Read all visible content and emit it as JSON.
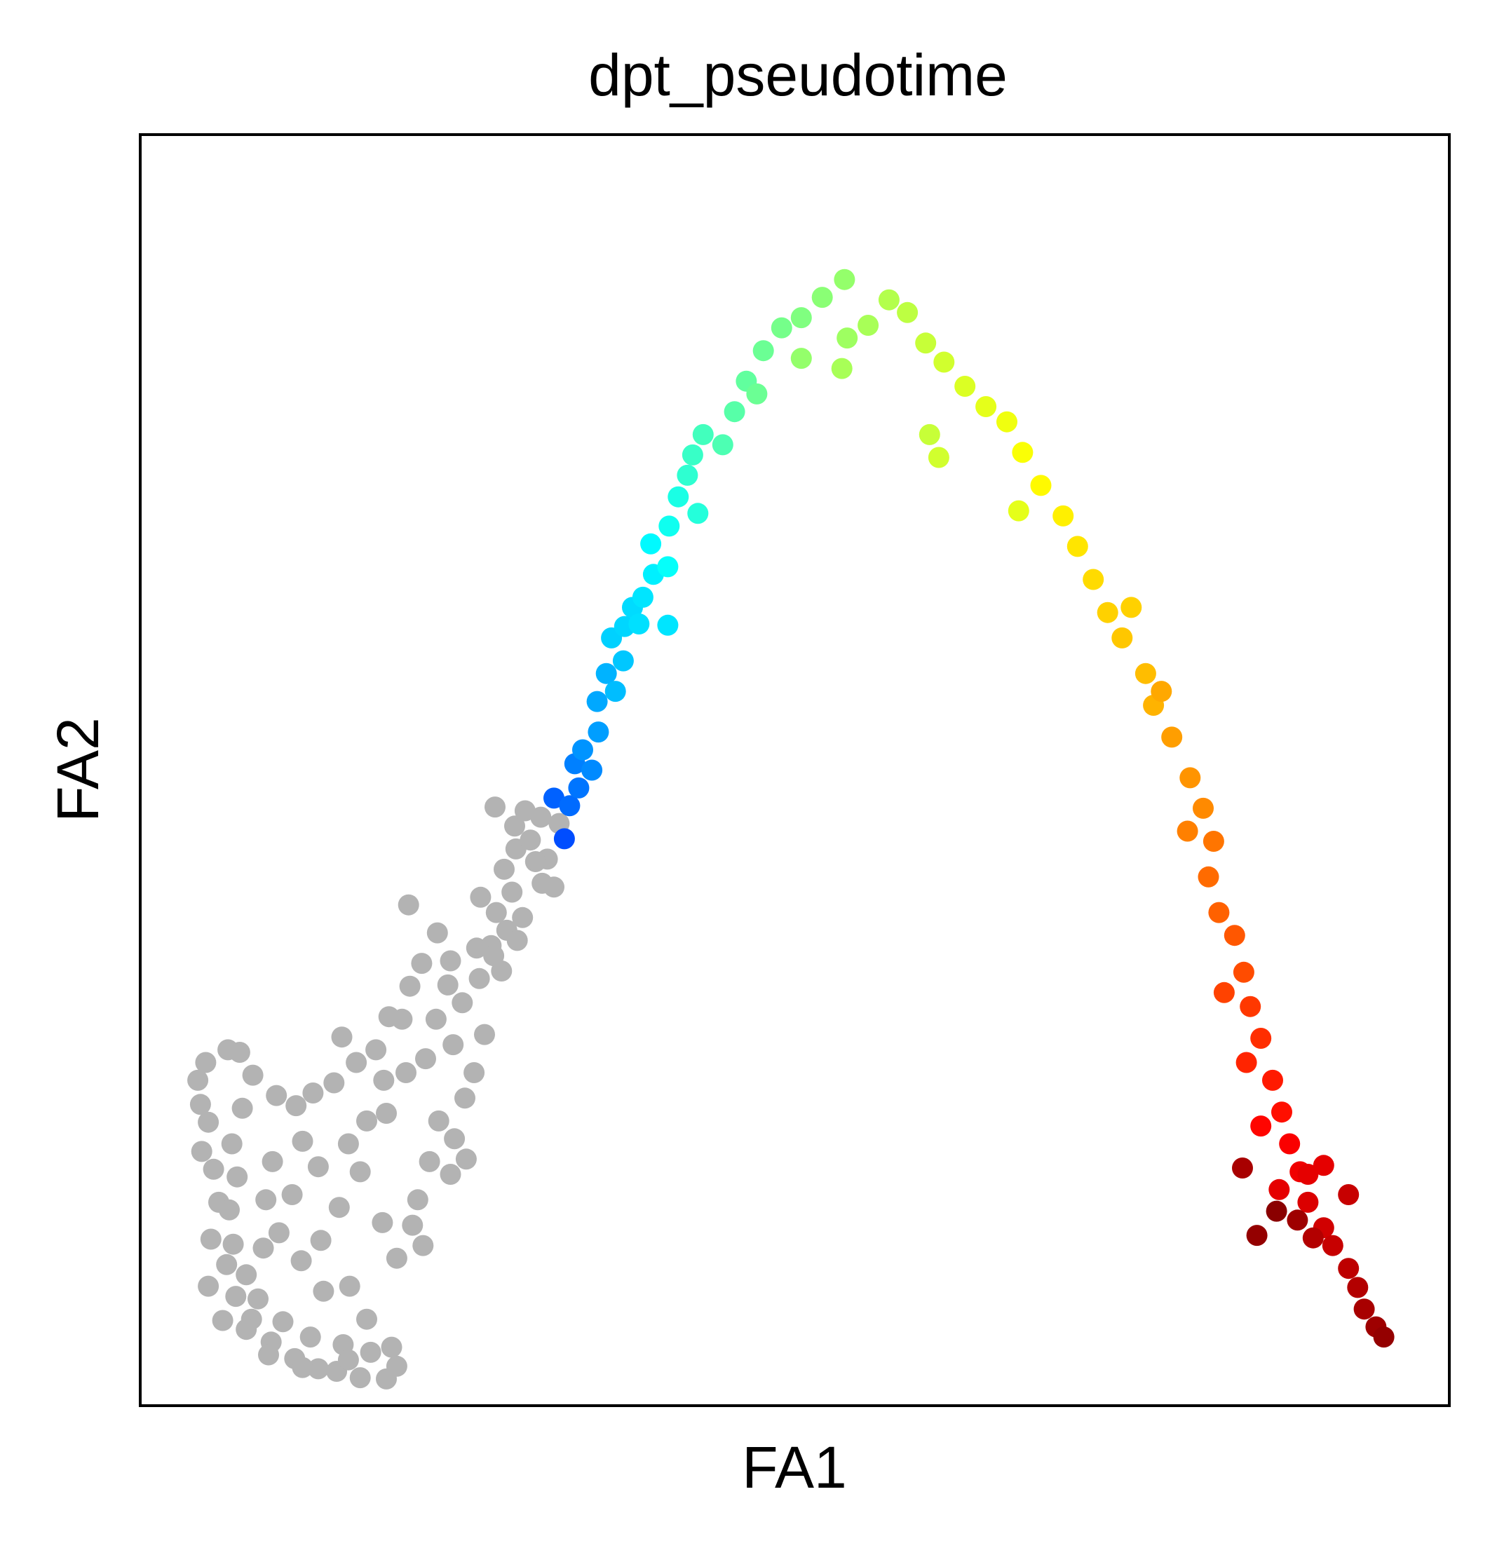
{
  "chart_data": {
    "type": "scatter",
    "title": "dpt_pseudotime",
    "xlabel": "FA1",
    "ylabel": "FA2",
    "xlim": [
      0,
      100
    ],
    "ylim": [
      0,
      100
    ],
    "xticks": false,
    "yticks": false,
    "grid": false,
    "legend": "none",
    "colormap": "jet",
    "missing_color": "#b3b3b3",
    "series": [
      {
        "values_note_free": true,
        "points": [
          [
            4.4,
            25.6,
            null
          ],
          [
            4.6,
            23.7,
            null
          ],
          [
            5.2,
            22.3,
            null
          ],
          [
            5.6,
            18.6,
            null
          ],
          [
            6.0,
            16.0,
            null
          ],
          [
            5.4,
            13.1,
            null
          ],
          [
            6.6,
            11.1,
            null
          ],
          [
            7.3,
            8.6,
            null
          ],
          [
            8.5,
            6.8,
            null
          ],
          [
            10.0,
            5.0,
            null
          ],
          [
            11.8,
            3.7,
            null
          ],
          [
            13.6,
            2.9,
            null
          ],
          [
            15.0,
            2.7,
            null
          ],
          [
            16.8,
            2.2,
            null
          ],
          [
            18.8,
            2.1,
            null
          ],
          [
            19.6,
            3.1,
            null
          ],
          [
            19.2,
            4.6,
            null
          ],
          [
            17.6,
            4.2,
            null
          ],
          [
            15.5,
            4.8,
            null
          ],
          [
            13.0,
            5.4,
            null
          ],
          [
            10.9,
            6.6,
            null
          ],
          [
            9.0,
            8.4,
            null
          ],
          [
            8.1,
            10.3,
            null
          ],
          [
            7.1,
            12.7,
            null
          ],
          [
            6.8,
            15.4,
            null
          ],
          [
            7.4,
            18.0,
            null
          ],
          [
            7.0,
            20.6,
            null
          ],
          [
            7.8,
            23.4,
            null
          ],
          [
            8.6,
            26.0,
            null
          ],
          [
            7.6,
            27.8,
            null
          ],
          [
            10.4,
            24.4,
            null
          ],
          [
            11.9,
            23.6,
            null
          ],
          [
            13.2,
            24.6,
            null
          ],
          [
            12.4,
            20.8,
            null
          ],
          [
            10.1,
            19.2,
            null
          ],
          [
            9.6,
            16.2,
            null
          ],
          [
            10.6,
            13.6,
            null
          ],
          [
            12.3,
            11.4,
            null
          ],
          [
            14.0,
            9.0,
            null
          ],
          [
            13.8,
            13.0,
            null
          ],
          [
            15.2,
            15.6,
            null
          ],
          [
            16.8,
            18.4,
            null
          ],
          [
            15.9,
            20.6,
            null
          ],
          [
            17.3,
            22.4,
            null
          ],
          [
            18.8,
            23.0,
            null
          ],
          [
            18.6,
            25.6,
            null
          ],
          [
            20.3,
            26.2,
            null
          ],
          [
            21.8,
            27.3,
            null
          ],
          [
            20.0,
            30.4,
            null
          ],
          [
            22.6,
            30.4,
            null
          ],
          [
            23.5,
            33.1,
            null
          ],
          [
            24.6,
            31.7,
            null
          ],
          [
            23.9,
            28.4,
            null
          ],
          [
            24.8,
            24.2,
            null
          ],
          [
            22.8,
            22.4,
            null
          ],
          [
            24.0,
            21.0,
            null
          ],
          [
            22.1,
            19.2,
            null
          ],
          [
            21.2,
            16.2,
            null
          ],
          [
            23.7,
            18.2,
            null
          ],
          [
            24.9,
            19.4,
            null
          ],
          [
            25.5,
            26.2,
            null
          ],
          [
            26.3,
            29.2,
            null
          ],
          [
            25.9,
            33.6,
            null
          ],
          [
            26.8,
            36.2,
            null
          ],
          [
            27.2,
            38.8,
            null
          ],
          [
            26.0,
            40.0,
            null
          ],
          [
            27.8,
            42.2,
            null
          ],
          [
            28.4,
            40.4,
            null
          ],
          [
            28.0,
            37.4,
            null
          ],
          [
            27.0,
            35.4,
            null
          ],
          [
            28.7,
            43.8,
            null
          ],
          [
            29.8,
            44.5,
            null
          ],
          [
            28.6,
            45.6,
            null
          ],
          [
            29.4,
            46.8,
            null
          ],
          [
            30.6,
            46.3,
            null
          ],
          [
            31.1,
            43.0,
            null
          ],
          [
            30.7,
            41.1,
            null
          ],
          [
            31.6,
            40.8,
            null
          ],
          [
            29.2,
            38.4,
            null
          ],
          [
            27.6,
            34.2,
            null
          ],
          [
            25.7,
            36.0,
            null
          ],
          [
            23.7,
            35.0,
            null
          ],
          [
            22.7,
            37.2,
            null
          ],
          [
            21.5,
            34.8,
            null
          ],
          [
            20.6,
            33.0,
            null
          ],
          [
            19.0,
            30.6,
            null
          ],
          [
            18.0,
            28.0,
            null
          ],
          [
            16.5,
            27.0,
            null
          ],
          [
            15.4,
            29.0,
            null
          ],
          [
            14.8,
            25.4,
            null
          ],
          [
            13.6,
            18.8,
            null
          ],
          [
            11.6,
            16.6,
            null
          ],
          [
            9.4,
            12.4,
            null
          ],
          [
            8.1,
            6.0,
            null
          ],
          [
            6.3,
            6.7,
            null
          ],
          [
            5.2,
            9.4,
            null
          ],
          [
            4.7,
            20.0,
            null
          ],
          [
            5.0,
            27.0,
            null
          ],
          [
            6.7,
            28.0,
            null
          ],
          [
            16.0,
            9.4,
            null
          ],
          [
            18.5,
            14.4,
            null
          ],
          [
            19.6,
            11.6,
            null
          ],
          [
            20.8,
            14.2,
            null
          ],
          [
            21.6,
            12.6,
            null
          ],
          [
            17.3,
            6.8,
            null
          ],
          [
            15.9,
            3.6,
            null
          ],
          [
            12.4,
            3.0,
            null
          ],
          [
            9.8,
            4.0,
            null
          ],
          [
            20.5,
            39.4,
            null
          ],
          [
            28.8,
            36.6,
            null
          ],
          [
            32.0,
            45.8,
            null
          ],
          [
            27.1,
            47.1,
            null
          ],
          [
            32.4,
            44.6,
            0.2
          ],
          [
            31.6,
            47.8,
            0.22
          ],
          [
            32.8,
            47.2,
            0.23
          ],
          [
            33.5,
            48.6,
            0.24
          ],
          [
            33.2,
            50.5,
            0.25
          ],
          [
            34.5,
            50.0,
            0.26
          ],
          [
            33.8,
            51.6,
            0.27
          ],
          [
            35.0,
            53.0,
            0.28
          ],
          [
            34.9,
            55.4,
            0.29
          ],
          [
            35.6,
            57.6,
            0.3
          ],
          [
            36.3,
            56.2,
            0.31
          ],
          [
            36.9,
            58.6,
            0.32
          ],
          [
            36.0,
            60.4,
            0.33
          ],
          [
            37.0,
            61.3,
            0.335
          ],
          [
            37.6,
            62.8,
            0.34
          ],
          [
            38.1,
            61.5,
            0.345
          ],
          [
            38.4,
            63.6,
            0.35
          ],
          [
            39.2,
            65.4,
            0.36
          ],
          [
            39.0,
            67.8,
            0.37
          ],
          [
            40.3,
            66.0,
            0.38
          ],
          [
            40.4,
            69.2,
            0.39
          ],
          [
            41.1,
            71.5,
            0.4
          ],
          [
            42.6,
            70.2,
            0.41
          ],
          [
            41.8,
            73.2,
            0.42
          ],
          [
            42.2,
            74.8,
            0.43
          ],
          [
            43.0,
            76.4,
            0.44
          ],
          [
            44.5,
            75.6,
            0.45
          ],
          [
            45.4,
            78.2,
            0.46
          ],
          [
            46.3,
            80.6,
            0.47
          ],
          [
            47.6,
            83.0,
            0.48
          ],
          [
            49.0,
            84.8,
            0.49
          ],
          [
            50.5,
            85.6,
            0.5
          ],
          [
            52.1,
            87.2,
            0.51
          ],
          [
            53.8,
            88.6,
            0.52
          ],
          [
            54.0,
            84.0,
            0.53
          ],
          [
            55.6,
            85.0,
            0.54
          ],
          [
            57.2,
            87.0,
            0.55
          ],
          [
            58.6,
            86.0,
            0.56
          ],
          [
            60.0,
            83.6,
            0.57
          ],
          [
            61.4,
            82.1,
            0.58
          ],
          [
            63.0,
            80.2,
            0.59
          ],
          [
            64.6,
            78.6,
            0.6
          ],
          [
            66.2,
            77.4,
            0.61
          ],
          [
            67.4,
            75.0,
            0.62
          ],
          [
            68.8,
            72.4,
            0.63
          ],
          [
            70.5,
            70.0,
            0.64
          ],
          [
            71.6,
            67.6,
            0.65
          ],
          [
            72.8,
            65.0,
            0.66
          ],
          [
            73.9,
            62.4,
            0.67
          ],
          [
            75.0,
            60.4,
            0.68
          ],
          [
            76.8,
            57.6,
            0.69
          ],
          [
            77.4,
            55.1,
            0.7
          ],
          [
            78.0,
            56.2,
            0.71
          ],
          [
            78.8,
            52.6,
            0.72
          ],
          [
            80.2,
            49.4,
            0.73
          ],
          [
            81.2,
            47.0,
            0.74
          ],
          [
            80.0,
            45.2,
            0.75
          ],
          [
            82.0,
            44.4,
            0.76
          ],
          [
            81.6,
            41.6,
            0.77
          ],
          [
            82.4,
            38.8,
            0.78
          ],
          [
            83.6,
            37.0,
            0.79
          ],
          [
            84.3,
            34.1,
            0.8
          ],
          [
            82.8,
            32.5,
            0.81
          ],
          [
            84.8,
            31.4,
            0.82
          ],
          [
            85.6,
            28.9,
            0.83
          ],
          [
            84.5,
            27.0,
            0.84
          ],
          [
            86.5,
            25.6,
            0.85
          ],
          [
            87.2,
            23.1,
            0.86
          ],
          [
            85.6,
            22.0,
            0.87
          ],
          [
            87.8,
            20.6,
            0.88
          ],
          [
            88.6,
            18.4,
            0.89
          ],
          [
            87.0,
            17.0,
            0.9
          ],
          [
            89.2,
            16.0,
            0.91
          ],
          [
            90.4,
            14.0,
            0.92
          ],
          [
            91.1,
            12.6,
            0.93
          ],
          [
            92.3,
            10.8,
            0.94
          ],
          [
            93.0,
            9.3,
            0.95
          ],
          [
            93.5,
            7.6,
            0.96
          ],
          [
            94.4,
            6.2,
            0.97
          ],
          [
            95.0,
            5.4,
            0.98
          ],
          [
            86.8,
            15.3,
            0.99
          ],
          [
            89.6,
            13.2,
            0.95
          ],
          [
            84.2,
            18.7,
            0.96
          ],
          [
            89.2,
            18.2,
            0.9
          ],
          [
            85.3,
            13.4,
            0.98
          ],
          [
            88.4,
            14.6,
            0.97
          ],
          [
            90.4,
            18.9,
            0.9
          ],
          [
            92.3,
            16.6,
            0.93
          ],
          [
            75.7,
            62.8,
            0.67
          ],
          [
            67.1,
            70.4,
            0.6
          ],
          [
            61.0,
            74.6,
            0.58
          ],
          [
            60.3,
            76.4,
            0.57
          ],
          [
            53.6,
            81.6,
            0.54
          ],
          [
            50.5,
            82.4,
            0.52
          ],
          [
            47.1,
            79.6,
            0.48
          ],
          [
            40.3,
            61.4,
            0.35
          ],
          [
            30.2,
            42.8,
            null
          ]
        ]
      }
    ]
  }
}
